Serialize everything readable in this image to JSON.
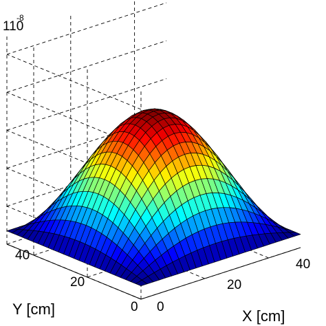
{
  "chart_data": {
    "type": "surface",
    "title": "",
    "xlabel": "X [cm]",
    "ylabel": "Y [cm]",
    "zlabel": "",
    "z_multiplier": {
      "base": "10",
      "exponent": "-8"
    },
    "x_ticks": [
      "0",
      "20",
      "40"
    ],
    "y_ticks": [
      "0",
      "20",
      "40"
    ],
    "xlim": [
      0,
      50
    ],
    "ylim": [
      0,
      50
    ],
    "zlim": [
      0,
      4
    ],
    "colormap": "jet",
    "grid": true,
    "mesh": {
      "x_range": [
        0,
        50
      ],
      "y_range": [
        0,
        50
      ],
      "nx": 26,
      "ny": 26
    },
    "surface": {
      "function": "peak * sin(pi*x/50) * sin(pi*y/50)",
      "peak": 3.2
    }
  }
}
